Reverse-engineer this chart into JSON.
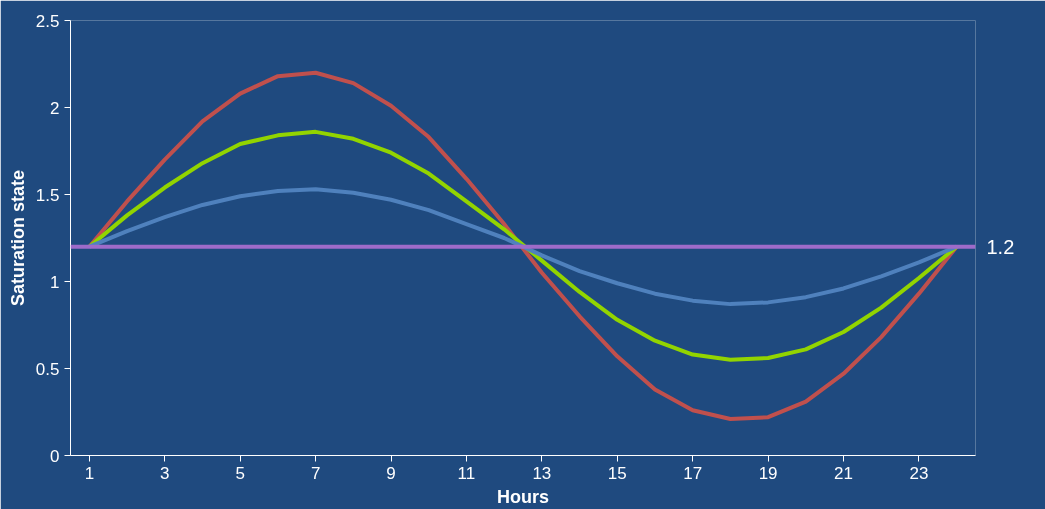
{
  "chart_data": {
    "type": "line",
    "xlabel": "Hours",
    "ylabel": "Saturation state",
    "x": [
      1,
      2,
      3,
      4,
      5,
      6,
      7,
      8,
      9,
      10,
      11,
      12,
      13,
      14,
      15,
      16,
      17,
      18,
      19,
      20,
      21,
      22,
      23,
      24
    ],
    "series": [
      {
        "color": "#c0504d",
        "values": [
          1.2,
          1.46,
          1.7,
          1.92,
          2.08,
          2.18,
          2.2,
          2.14,
          2.01,
          1.83,
          1.59,
          1.33,
          1.05,
          0.8,
          0.57,
          0.38,
          0.26,
          0.21,
          0.22,
          0.31,
          0.47,
          0.68,
          0.93,
          1.2
        ]
      },
      {
        "color": "#92d400",
        "values": [
          1.2,
          1.38,
          1.54,
          1.68,
          1.79,
          1.84,
          1.86,
          1.82,
          1.74,
          1.62,
          1.46,
          1.3,
          1.12,
          0.94,
          0.78,
          0.66,
          0.58,
          0.55,
          0.56,
          0.61,
          0.71,
          0.85,
          1.02,
          1.2
        ]
      },
      {
        "color": "#4f81bd",
        "values": [
          1.2,
          1.29,
          1.37,
          1.44,
          1.49,
          1.52,
          1.53,
          1.51,
          1.47,
          1.41,
          1.33,
          1.25,
          1.15,
          1.06,
          0.99,
          0.93,
          0.89,
          0.87,
          0.88,
          0.91,
          0.96,
          1.03,
          1.11,
          1.2
        ]
      }
    ],
    "ref_lines": [
      {
        "axis": "y",
        "value": 1.2,
        "label": "1.2",
        "color": "#9e6bc9"
      }
    ],
    "xlim": [
      0.5,
      24.5
    ],
    "xticks": [
      1,
      3,
      5,
      7,
      9,
      11,
      13,
      15,
      17,
      19,
      21,
      23
    ],
    "ylim": [
      0,
      2.5
    ],
    "yticks": [
      0,
      0.5,
      1,
      1.5,
      2,
      2.5
    ],
    "grid": false,
    "marker": "none",
    "line_style": "solid"
  }
}
